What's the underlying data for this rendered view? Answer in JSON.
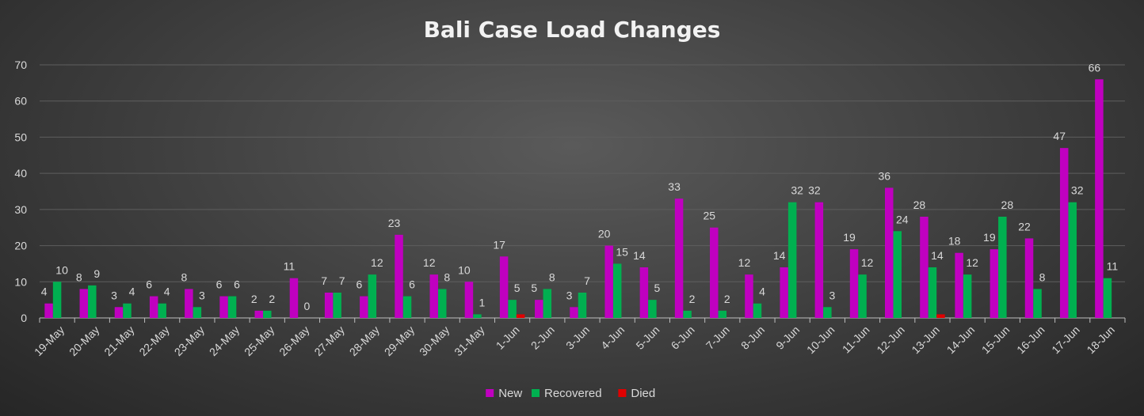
{
  "chart_data": {
    "type": "bar",
    "title": "Bali Case Load Changes",
    "xlabel": "",
    "ylabel": "",
    "ylim": [
      0,
      70
    ],
    "yticks": [
      0,
      10,
      20,
      30,
      40,
      50,
      60,
      70
    ],
    "grid": true,
    "legend_position": "bottom",
    "categories": [
      "19-May",
      "20-May",
      "21-May",
      "22-May",
      "23-May",
      "24-May",
      "25-May",
      "26-May",
      "27-May",
      "28-May",
      "29-May",
      "30-May",
      "31-May",
      "1-Jun",
      "2-Jun",
      "3-Jun",
      "4-Jun",
      "5-Jun",
      "6-Jun",
      "7-Jun",
      "8-Jun",
      "9-Jun",
      "10-Jun",
      "11-Jun",
      "12-Jun",
      "13-Jun",
      "14-Jun",
      "15-Jun",
      "16-Jun",
      "17-Jun",
      "18-Jun"
    ],
    "series": [
      {
        "name": "New",
        "color": "#c000c0",
        "values": [
          4,
          8,
          3,
          6,
          8,
          6,
          2,
          11,
          7,
          6,
          23,
          12,
          10,
          17,
          5,
          3,
          20,
          14,
          33,
          25,
          12,
          14,
          32,
          19,
          36,
          28,
          18,
          19,
          22,
          47,
          66
        ],
        "labels": [
          4,
          8,
          3,
          6,
          8,
          6,
          2,
          11,
          7,
          6,
          23,
          12,
          10,
          17,
          5,
          3,
          20,
          14,
          33,
          25,
          12,
          14,
          32,
          19,
          36,
          28,
          18,
          19,
          22,
          47,
          66
        ]
      },
      {
        "name": "Recovered",
        "color": "#00b050",
        "values": [
          10,
          9,
          4,
          4,
          3,
          6,
          2,
          0,
          7,
          12,
          6,
          8,
          1,
          5,
          8,
          7,
          15,
          5,
          2,
          2,
          4,
          32,
          3,
          12,
          24,
          14,
          12,
          28,
          8,
          32,
          11
        ],
        "labels": [
          10,
          9,
          4,
          4,
          3,
          6,
          2,
          0,
          7,
          12,
          6,
          8,
          1,
          5,
          8,
          7,
          15,
          5,
          2,
          2,
          4,
          32,
          3,
          12,
          24,
          14,
          12,
          28,
          8,
          32,
          11
        ]
      },
      {
        "name": "Died",
        "color": "#e00000",
        "values": [
          0,
          0,
          0,
          0,
          0,
          0,
          0,
          0,
          0,
          0,
          0,
          0,
          0,
          1,
          0,
          0,
          0,
          0,
          0,
          0,
          0,
          0,
          0,
          0,
          0,
          1,
          0,
          0,
          0,
          0,
          0
        ],
        "labels": [
          null,
          null,
          null,
          null,
          null,
          null,
          null,
          null,
          null,
          null,
          null,
          null,
          null,
          null,
          null,
          null,
          null,
          null,
          null,
          null,
          null,
          null,
          null,
          null,
          null,
          null,
          null,
          null,
          null,
          null,
          null
        ]
      }
    ]
  }
}
